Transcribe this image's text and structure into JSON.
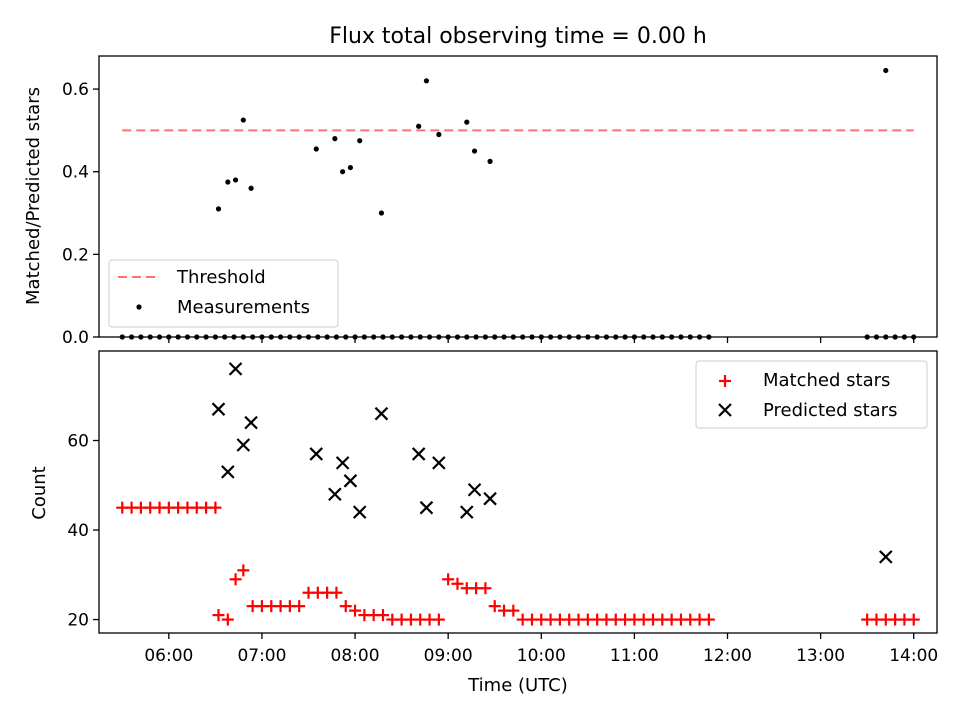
{
  "title": "Flux total observing time = 0.00 h",
  "chart_data": [
    {
      "type": "scatter",
      "panel": "top",
      "ylabel": "Matched/Predicted stars",
      "xlabel": "",
      "x_range": [
        "05:15",
        "14:15"
      ],
      "ylim": [
        0,
        0.68
      ],
      "yticks": [
        0.0,
        0.2,
        0.4,
        0.6
      ],
      "ytick_labels": [
        "0.0",
        "0.2",
        "0.4",
        "0.6"
      ],
      "grid": false,
      "legend": "lower-left",
      "colors": {
        "threshold": "#ff7070",
        "measurements": "#000000"
      },
      "series": [
        {
          "name": "Threshold",
          "kind": "dashed-line",
          "x": [
            "05:30",
            "14:00"
          ],
          "y": [
            0.5,
            0.5
          ]
        },
        {
          "name": "Measurements",
          "kind": "points",
          "x": [
            "05:30",
            "05:36",
            "05:42",
            "05:48",
            "05:54",
            "06:00",
            "06:06",
            "06:12",
            "06:18",
            "06:24",
            "06:30",
            "06:36",
            "06:42",
            "06:48",
            "06:54",
            "07:00",
            "07:06",
            "07:12",
            "07:18",
            "07:24",
            "07:30",
            "07:36",
            "07:42",
            "07:48",
            "07:54",
            "08:00",
            "08:06",
            "08:12",
            "08:18",
            "08:24",
            "08:30",
            "08:36",
            "08:42",
            "08:48",
            "08:54",
            "09:00",
            "09:06",
            "09:12",
            "09:18",
            "09:24",
            "09:30",
            "09:36",
            "09:42",
            "09:48",
            "09:54",
            "10:00",
            "10:06",
            "10:12",
            "10:18",
            "10:24",
            "10:30",
            "10:36",
            "10:42",
            "10:48",
            "10:54",
            "11:00",
            "11:06",
            "11:12",
            "11:18",
            "11:24",
            "11:30",
            "11:36",
            "11:42",
            "11:48",
            "13:30",
            "13:36",
            "13:42",
            "13:48",
            "13:54",
            "14:00",
            "06:32",
            "06:38",
            "06:43",
            "06:48",
            "06:53",
            "07:35",
            "07:47",
            "07:52",
            "07:57",
            "08:03",
            "08:17",
            "08:41",
            "08:46",
            "08:54",
            "09:12",
            "09:17",
            "09:27",
            "13:42"
          ],
          "y": [
            0,
            0,
            0,
            0,
            0,
            0,
            0,
            0,
            0,
            0,
            0,
            0,
            0,
            0,
            0,
            0,
            0,
            0,
            0,
            0,
            0,
            0,
            0,
            0,
            0,
            0,
            0,
            0,
            0,
            0,
            0,
            0,
            0,
            0,
            0,
            0,
            0,
            0,
            0,
            0,
            0,
            0,
            0,
            0,
            0,
            0,
            0,
            0,
            0,
            0,
            0,
            0,
            0,
            0,
            0,
            0,
            0,
            0,
            0,
            0,
            0,
            0,
            0,
            0,
            0,
            0,
            0,
            0,
            0,
            0,
            0.31,
            0.375,
            0.38,
            0.525,
            0.36,
            0.455,
            0.48,
            0.4,
            0.41,
            0.475,
            0.3,
            0.51,
            0.62,
            0.49,
            0.52,
            0.45,
            0.425,
            0.645
          ]
        }
      ]
    },
    {
      "type": "scatter",
      "panel": "bottom",
      "ylabel": "Count",
      "xlabel": "Time (UTC)",
      "x_range": [
        "05:15",
        "14:15"
      ],
      "xtick_labels": [
        "06:00",
        "07:00",
        "08:00",
        "09:00",
        "10:00",
        "11:00",
        "12:00",
        "13:00",
        "14:00"
      ],
      "ylim": [
        17,
        80
      ],
      "yticks": [
        20,
        40,
        60
      ],
      "ytick_labels": [
        "20",
        "40",
        "60"
      ],
      "grid": false,
      "legend": "top-right",
      "colors": {
        "matched": "#ff0000",
        "predicted": "#000000"
      },
      "series": [
        {
          "name": "Matched stars",
          "marker": "+",
          "x": [
            "05:30",
            "05:36",
            "05:42",
            "05:48",
            "05:54",
            "06:00",
            "06:06",
            "06:12",
            "06:18",
            "06:24",
            "06:30",
            "06:32",
            "06:38",
            "06:43",
            "06:48",
            "06:54",
            "07:00",
            "07:06",
            "07:12",
            "07:18",
            "07:24",
            "07:30",
            "07:36",
            "07:42",
            "07:48",
            "07:54",
            "08:00",
            "08:06",
            "08:12",
            "08:18",
            "08:24",
            "08:30",
            "08:36",
            "08:42",
            "08:48",
            "08:54",
            "09:00",
            "09:06",
            "09:12",
            "09:18",
            "09:24",
            "09:30",
            "09:36",
            "09:42",
            "09:48",
            "09:54",
            "10:00",
            "10:06",
            "10:12",
            "10:18",
            "10:24",
            "10:30",
            "10:36",
            "10:42",
            "10:48",
            "10:54",
            "11:00",
            "11:06",
            "11:12",
            "11:18",
            "11:24",
            "11:30",
            "11:36",
            "11:42",
            "11:48",
            "13:30",
            "13:36",
            "13:42",
            "13:48",
            "13:54",
            "14:00"
          ],
          "y": [
            45,
            45,
            45,
            45,
            45,
            45,
            45,
            45,
            45,
            45,
            45,
            21,
            20,
            29,
            31,
            23,
            23,
            23,
            23,
            23,
            23,
            26,
            26,
            26,
            26,
            23,
            22,
            21,
            21,
            21,
            20,
            20,
            20,
            20,
            20,
            20,
            29,
            28,
            27,
            27,
            27,
            23,
            22,
            22,
            20,
            20,
            20,
            20,
            20,
            20,
            20,
            20,
            20,
            20,
            20,
            20,
            20,
            20,
            20,
            20,
            20,
            20,
            20,
            20,
            20,
            20,
            20,
            20,
            20,
            20,
            20
          ]
        },
        {
          "name": "Predicted stars",
          "marker": "x",
          "x": [
            "06:32",
            "06:38",
            "06:43",
            "06:48",
            "06:53",
            "07:35",
            "07:47",
            "07:52",
            "07:57",
            "08:03",
            "08:17",
            "08:41",
            "08:46",
            "08:54",
            "09:12",
            "09:17",
            "09:27",
            "13:42"
          ],
          "y": [
            67,
            53,
            76,
            59,
            64,
            57,
            48,
            55,
            51,
            44,
            66,
            57,
            45,
            55,
            44,
            49,
            47,
            34
          ]
        }
      ]
    }
  ]
}
